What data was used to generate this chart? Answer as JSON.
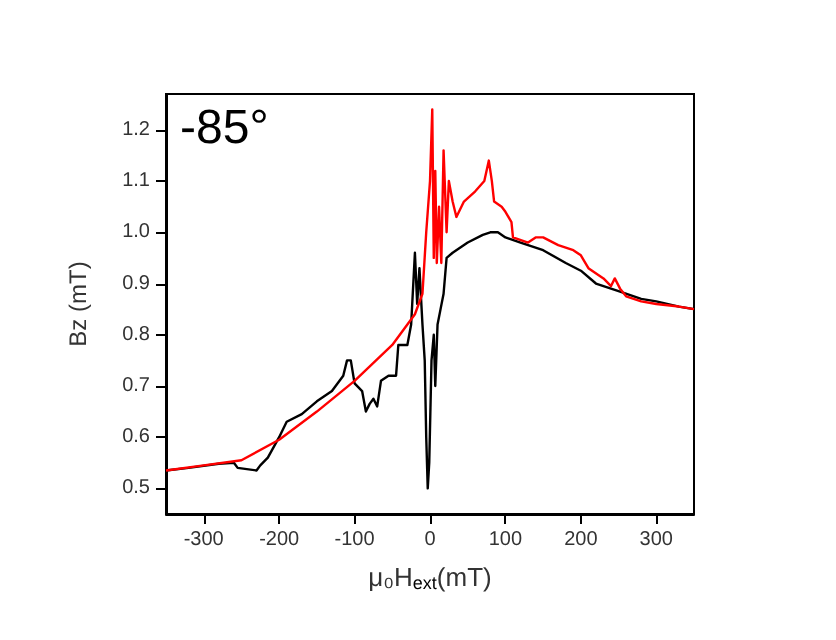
{
  "chart_data": {
    "type": "line",
    "xlabel": "μ₀H$_{ext}$(mT)",
    "ylabel": "Bz (mT)",
    "annotations": [
      "-85°"
    ],
    "xlim": [
      -350,
      350
    ],
    "xticks": [
      -300,
      -200,
      -100,
      0,
      100,
      200,
      300
    ],
    "ylim": [
      0.45,
      1.27
    ],
    "yticks": [
      0.5,
      0.6,
      0.7,
      0.8,
      0.9,
      {
        "value": 1,
        "label": "1.0"
      },
      1.1,
      1.2
    ],
    "grid": false,
    "marker": "none",
    "line_style": "solid",
    "series": [
      {
        "color": "#000000",
        "x": [
          -350,
          -320,
          -280,
          -260,
          -255,
          -230,
          -225,
          -215,
          -200,
          -190,
          -170,
          -150,
          -130,
          -115,
          -110,
          -105,
          -100,
          -90,
          -85,
          -80,
          -75,
          -70,
          -65,
          -55,
          -45,
          -42,
          -30,
          -25,
          -20,
          -17,
          -14,
          -10,
          -7,
          -5,
          -3,
          -1,
          2,
          5,
          7,
          10,
          14,
          18,
          22,
          30,
          50,
          70,
          80,
          90,
          100,
          120,
          150,
          180,
          200,
          220,
          250,
          280,
          300,
          330,
          350
        ],
        "values": [
          0.535,
          0.54,
          0.548,
          0.55,
          0.54,
          0.535,
          0.545,
          0.56,
          0.6,
          0.63,
          0.645,
          0.67,
          0.69,
          0.72,
          0.75,
          0.75,
          0.705,
          0.69,
          0.65,
          0.665,
          0.675,
          0.66,
          0.71,
          0.72,
          0.72,
          0.78,
          0.78,
          0.82,
          0.96,
          0.86,
          0.93,
          0.82,
          0.75,
          0.6,
          0.5,
          0.55,
          0.75,
          0.8,
          0.7,
          0.82,
          0.85,
          0.88,
          0.95,
          0.96,
          0.98,
          0.995,
          1.0,
          1.0,
          0.99,
          0.98,
          0.965,
          0.94,
          0.925,
          0.9,
          0.885,
          0.87,
          0.865,
          0.855,
          0.85
        ]
      },
      {
        "color": "#ff0000",
        "x": [
          -350,
          -300,
          -250,
          -200,
          -150,
          -100,
          -50,
          -20,
          -10,
          -5,
          0,
          3,
          5,
          7,
          9,
          12,
          15,
          18,
          22,
          25,
          30,
          35,
          45,
          60,
          72,
          78,
          82,
          85,
          95,
          100,
          108,
          110,
          130,
          140,
          150,
          170,
          190,
          200,
          210,
          230,
          240,
          245,
          252,
          260,
          280,
          300,
          330,
          350
        ],
        "values": [
          0.535,
          0.545,
          0.555,
          0.595,
          0.65,
          0.71,
          0.78,
          0.84,
          0.88,
          1.0,
          1.1,
          1.24,
          0.95,
          1.12,
          0.94,
          1.05,
          0.94,
          1.16,
          1.0,
          1.1,
          1.06,
          1.03,
          1.06,
          1.08,
          1.1,
          1.14,
          1.1,
          1.06,
          1.05,
          1.04,
          1.02,
          0.99,
          0.98,
          0.99,
          0.99,
          0.975,
          0.965,
          0.955,
          0.93,
          0.91,
          0.895,
          0.91,
          0.89,
          0.875,
          0.865,
          0.86,
          0.855,
          0.85
        ]
      }
    ]
  }
}
